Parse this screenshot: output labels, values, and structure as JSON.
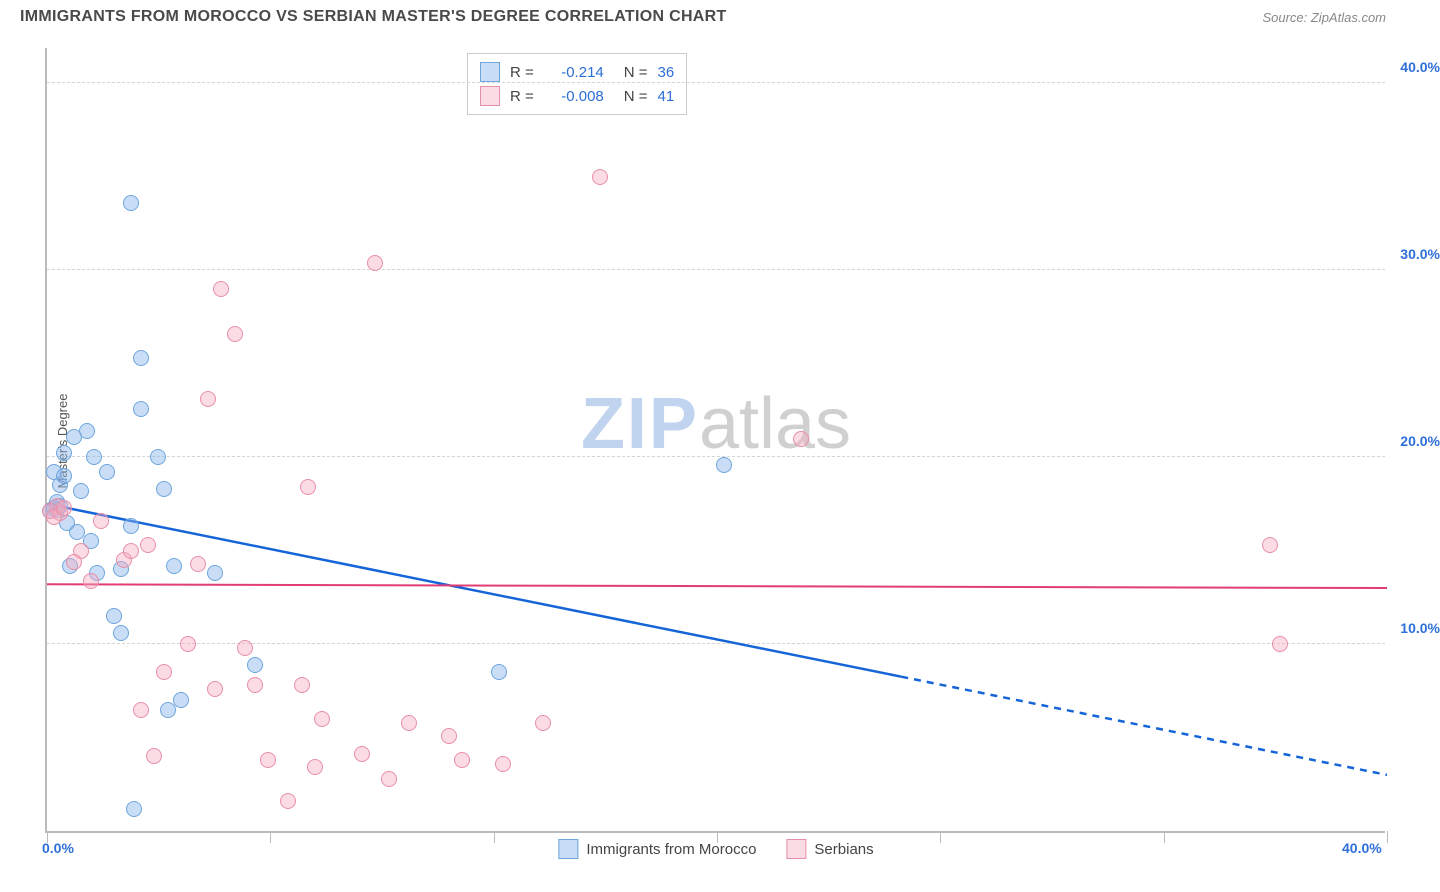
{
  "header": {
    "title": "IMMIGRANTS FROM MOROCCO VS SERBIAN MASTER'S DEGREE CORRELATION CHART",
    "source": "Source: ZipAtlas.com"
  },
  "chart": {
    "type": "scatter",
    "ylabel": "Master's Degree",
    "xlim": [
      0,
      40.0
    ],
    "ylim": [
      0,
      42.0
    ],
    "x_axis_labels": [
      {
        "value": 0.0,
        "label": "0.0%"
      },
      {
        "value": 40.0,
        "label": "40.0%"
      }
    ],
    "y_axis_labels": [
      {
        "value": 10.0,
        "label": "10.0%"
      },
      {
        "value": 20.0,
        "label": "20.0%"
      },
      {
        "value": 30.0,
        "label": "30.0%"
      },
      {
        "value": 40.0,
        "label": "40.0%"
      }
    ],
    "y_gridlines": [
      10.0,
      20.0,
      30.0,
      40.0
    ],
    "x_ticks": [
      0,
      6.67,
      13.33,
      20.0,
      26.67,
      33.33,
      40.0
    ],
    "background_color": "#ffffff",
    "grid_color": "#d5d5d5",
    "axis_color": "#bbbbbb",
    "marker_radius": 8,
    "marker_stroke_width": 1.2,
    "series": [
      {
        "name": "Immigrants from Morocco",
        "fill_color": "rgba(135,180,235,0.45)",
        "stroke_color": "#6fa6dd",
        "line_color": "#1565d8",
        "line_width": 2.5,
        "R": "-0.214",
        "N": "36",
        "regression": {
          "x1": 0,
          "y1": 17.5,
          "x2": 40,
          "y2": 3.0,
          "solid_to_x": 25.5
        },
        "points": [
          {
            "x": 2.5,
            "y": 33.6
          },
          {
            "x": 2.8,
            "y": 25.3
          },
          {
            "x": 2.8,
            "y": 22.6
          },
          {
            "x": 1.2,
            "y": 21.4
          },
          {
            "x": 1.4,
            "y": 20.0
          },
          {
            "x": 3.3,
            "y": 20.0
          },
          {
            "x": 3.5,
            "y": 18.3
          },
          {
            "x": 0.2,
            "y": 19.2
          },
          {
            "x": 1.0,
            "y": 18.2
          },
          {
            "x": 0.3,
            "y": 17.2
          },
          {
            "x": 0.2,
            "y": 17.3
          },
          {
            "x": 0.4,
            "y": 17.4
          },
          {
            "x": 0.5,
            "y": 20.2
          },
          {
            "x": 2.5,
            "y": 16.3
          },
          {
            "x": 0.7,
            "y": 14.2
          },
          {
            "x": 1.5,
            "y": 13.8
          },
          {
            "x": 2.2,
            "y": 14.0
          },
          {
            "x": 5.0,
            "y": 13.8
          },
          {
            "x": 2.0,
            "y": 11.5
          },
          {
            "x": 2.2,
            "y": 10.6
          },
          {
            "x": 3.6,
            "y": 6.5
          },
          {
            "x": 6.2,
            "y": 8.9
          },
          {
            "x": 2.6,
            "y": 1.2
          },
          {
            "x": 13.5,
            "y": 8.5
          },
          {
            "x": 20.2,
            "y": 19.6
          },
          {
            "x": 0.3,
            "y": 17.6
          },
          {
            "x": 0.4,
            "y": 18.5
          },
          {
            "x": 0.8,
            "y": 21.1
          },
          {
            "x": 0.9,
            "y": 16.0
          },
          {
            "x": 1.8,
            "y": 19.2
          },
          {
            "x": 3.8,
            "y": 14.2
          },
          {
            "x": 0.1,
            "y": 17.1
          },
          {
            "x": 1.3,
            "y": 15.5
          },
          {
            "x": 4.0,
            "y": 7.0
          },
          {
            "x": 0.6,
            "y": 16.5
          },
          {
            "x": 0.5,
            "y": 19.0
          }
        ]
      },
      {
        "name": "Serbians",
        "fill_color": "rgba(245,170,190,0.42)",
        "stroke_color": "#e78fa8",
        "line_color": "#e23d74",
        "line_width": 2,
        "R": "-0.008",
        "N": "41",
        "regression": {
          "x1": 0,
          "y1": 13.2,
          "x2": 40,
          "y2": 13.0,
          "solid_to_x": 40
        },
        "points": [
          {
            "x": 16.5,
            "y": 35.0
          },
          {
            "x": 9.8,
            "y": 30.4
          },
          {
            "x": 5.2,
            "y": 29.0
          },
          {
            "x": 5.6,
            "y": 26.6
          },
          {
            "x": 4.8,
            "y": 23.1
          },
          {
            "x": 7.8,
            "y": 18.4
          },
          {
            "x": 22.5,
            "y": 21.0
          },
          {
            "x": 0.3,
            "y": 17.4
          },
          {
            "x": 0.1,
            "y": 17.1
          },
          {
            "x": 0.4,
            "y": 17.0
          },
          {
            "x": 0.2,
            "y": 16.8
          },
          {
            "x": 0.5,
            "y": 17.3
          },
          {
            "x": 1.6,
            "y": 16.6
          },
          {
            "x": 1.0,
            "y": 15.0
          },
          {
            "x": 0.8,
            "y": 14.4
          },
          {
            "x": 2.3,
            "y": 14.5
          },
          {
            "x": 3.0,
            "y": 15.3
          },
          {
            "x": 4.5,
            "y": 14.3
          },
          {
            "x": 4.2,
            "y": 10.0
          },
          {
            "x": 5.9,
            "y": 9.8
          },
          {
            "x": 2.8,
            "y": 6.5
          },
          {
            "x": 3.5,
            "y": 8.5
          },
          {
            "x": 5.0,
            "y": 7.6
          },
          {
            "x": 6.2,
            "y": 7.8
          },
          {
            "x": 7.6,
            "y": 7.8
          },
          {
            "x": 6.6,
            "y": 3.8
          },
          {
            "x": 7.2,
            "y": 1.6
          },
          {
            "x": 8.2,
            "y": 6.0
          },
          {
            "x": 8.0,
            "y": 3.4
          },
          {
            "x": 9.4,
            "y": 4.1
          },
          {
            "x": 10.2,
            "y": 2.8
          },
          {
            "x": 10.8,
            "y": 5.8
          },
          {
            "x": 12.0,
            "y": 5.1
          },
          {
            "x": 12.4,
            "y": 3.8
          },
          {
            "x": 13.6,
            "y": 3.6
          },
          {
            "x": 14.8,
            "y": 5.8
          },
          {
            "x": 36.5,
            "y": 15.3
          },
          {
            "x": 36.8,
            "y": 10.0
          },
          {
            "x": 1.3,
            "y": 13.4
          },
          {
            "x": 2.5,
            "y": 15.0
          },
          {
            "x": 3.2,
            "y": 4.0
          }
        ]
      }
    ],
    "watermark": {
      "zip": "ZIP",
      "atlas": "atlas"
    },
    "legend_bottom": [
      {
        "label": "Immigrants from Morocco",
        "fill": "rgba(135,180,235,0.45)",
        "stroke": "#6fa6dd"
      },
      {
        "label": "Serbians",
        "fill": "rgba(245,170,190,0.42)",
        "stroke": "#e78fa8"
      }
    ]
  }
}
